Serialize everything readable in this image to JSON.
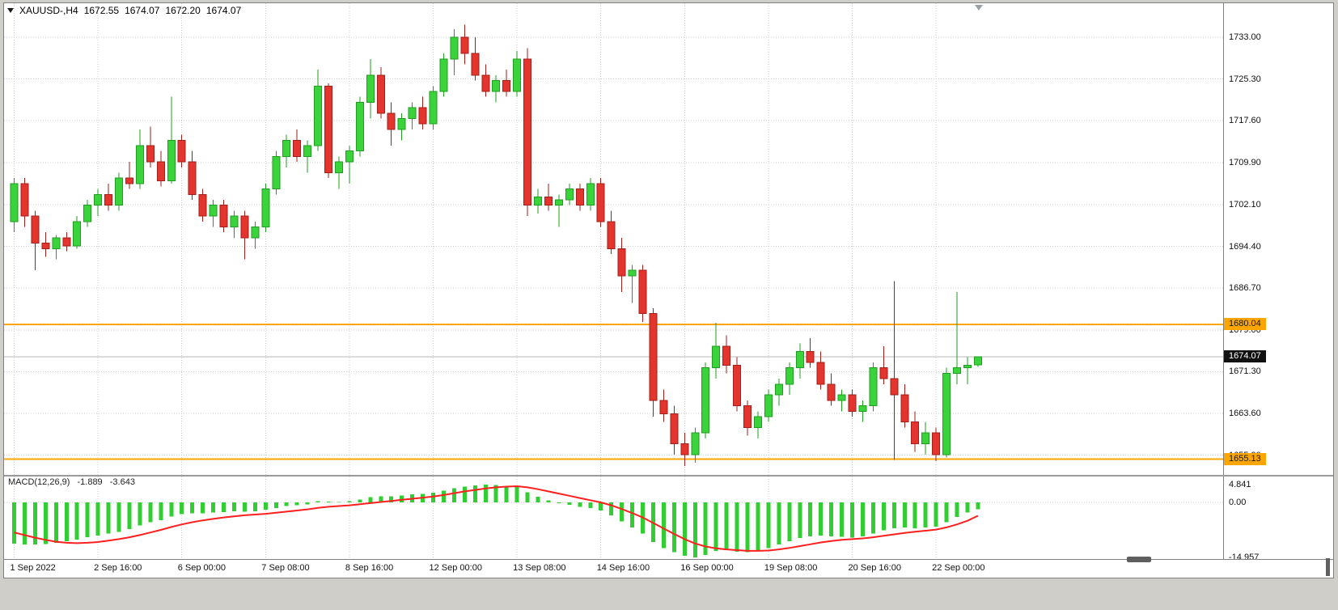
{
  "window": {
    "background": "#d0cec8"
  },
  "quote_bar": {
    "symbol": "XAUUSD-,H4",
    "open": "1672.55",
    "high": "1674.07",
    "low": "1672.20",
    "close": "1674.07"
  },
  "levels": {
    "resistance": {
      "price": 1680.04,
      "label": "1680.04",
      "color": "#ffa500"
    },
    "support": {
      "price": 1655.13,
      "label": "1655.13",
      "color": "#ffa500"
    },
    "current": {
      "price": 1674.07,
      "label": "1674.07",
      "bg": "#111111",
      "fg": "#ffffff"
    }
  },
  "macd_panel": {
    "title": "MACD(12,26,9)",
    "value_main": "-1.889",
    "value_signal": "-3.643",
    "axis_labels": [
      {
        "text": "4.841",
        "value": 4.841
      },
      {
        "text": "0.00",
        "value": 0
      },
      {
        "text": "-14.957",
        "value": -14.957
      }
    ]
  },
  "chart_data": {
    "type": "candlestick",
    "symbol": "XAUUSD-",
    "timeframe": "H4",
    "title": "XAUUSD- H4 with MACD(12,26,9)",
    "ylim": [
      1650,
      1737
    ],
    "grid": true,
    "price_ticks": [
      1733.0,
      1725.3,
      1717.6,
      1709.9,
      1702.1,
      1694.4,
      1686.7,
      1679.0,
      1671.3,
      1663.6,
      1655.9
    ],
    "x_labels": [
      {
        "index": 0,
        "text": "1 Sep 2022"
      },
      {
        "index": 8,
        "text": "2 Sep 16:00"
      },
      {
        "index": 16,
        "text": "6 Sep 00:00"
      },
      {
        "index": 24,
        "text": "7 Sep 08:00"
      },
      {
        "index": 32,
        "text": "8 Sep 16:00"
      },
      {
        "index": 40,
        "text": "12 Sep 00:00"
      },
      {
        "index": 48,
        "text": "13 Sep 08:00"
      },
      {
        "index": 56,
        "text": "14 Sep 16:00"
      },
      {
        "index": 64,
        "text": "16 Sep 00:00"
      },
      {
        "index": 72,
        "text": "19 Sep 08:00"
      },
      {
        "index": 80,
        "text": "20 Sep 16:00"
      },
      {
        "index": 88,
        "text": "22 Sep 00:00"
      }
    ],
    "candles": [
      [
        1699,
        1707,
        1697,
        1706
      ],
      [
        1706,
        1707,
        1698,
        1700
      ],
      [
        1700,
        1701,
        1690,
        1695
      ],
      [
        1695,
        1697,
        1692.5,
        1694
      ],
      [
        1694,
        1696.5,
        1692,
        1696
      ],
      [
        1696,
        1697,
        1693.5,
        1694.5
      ],
      [
        1694.5,
        1700,
        1694,
        1699
      ],
      [
        1699,
        1703,
        1698,
        1702
      ],
      [
        1702,
        1705,
        1700,
        1704
      ],
      [
        1704,
        1706,
        1701,
        1702
      ],
      [
        1702,
        1708,
        1701,
        1707
      ],
      [
        1707,
        1710,
        1705,
        1706
      ],
      [
        1706,
        1716,
        1705,
        1713
      ],
      [
        1713,
        1716.5,
        1709,
        1710
      ],
      [
        1710,
        1712,
        1705.5,
        1706.5
      ],
      [
        1706.5,
        1722,
        1706,
        1714
      ],
      [
        1714,
        1715,
        1709,
        1710
      ],
      [
        1710,
        1712,
        1703,
        1704
      ],
      [
        1704,
        1705,
        1699,
        1700
      ],
      [
        1700,
        1703,
        1698,
        1702
      ],
      [
        1702,
        1703,
        1697,
        1698
      ],
      [
        1698,
        1701,
        1696,
        1700
      ],
      [
        1700,
        1701,
        1692,
        1696
      ],
      [
        1696,
        1699,
        1694,
        1698
      ],
      [
        1698,
        1706,
        1697,
        1705
      ],
      [
        1705,
        1712,
        1704,
        1711
      ],
      [
        1711,
        1715,
        1709,
        1714
      ],
      [
        1714,
        1716,
        1710,
        1711
      ],
      [
        1711,
        1714,
        1708,
        1713
      ],
      [
        1713,
        1727,
        1712,
        1724
      ],
      [
        1724,
        1724.5,
        1707,
        1708
      ],
      [
        1708,
        1711,
        1705,
        1710
      ],
      [
        1710,
        1713,
        1706,
        1712
      ],
      [
        1712,
        1722,
        1711,
        1721
      ],
      [
        1721,
        1729,
        1718,
        1726
      ],
      [
        1726,
        1727.5,
        1718,
        1719
      ],
      [
        1719,
        1721,
        1713,
        1716
      ],
      [
        1716,
        1719,
        1714,
        1718
      ],
      [
        1718,
        1721,
        1716,
        1720
      ],
      [
        1720,
        1722,
        1716,
        1717
      ],
      [
        1717,
        1724,
        1716,
        1723
      ],
      [
        1723,
        1730,
        1722,
        1729
      ],
      [
        1729,
        1734.5,
        1726,
        1733
      ],
      [
        1733,
        1735.3,
        1728,
        1730
      ],
      [
        1730,
        1733,
        1725,
        1726
      ],
      [
        1726,
        1728,
        1722,
        1723
      ],
      [
        1723,
        1726,
        1721,
        1725
      ],
      [
        1725,
        1727,
        1722,
        1723
      ],
      [
        1723,
        1730.5,
        1722,
        1729
      ],
      [
        1729,
        1731,
        1700,
        1702
      ],
      [
        1702,
        1705,
        1700.5,
        1703.5
      ],
      [
        1703.5,
        1706,
        1701,
        1702
      ],
      [
        1702,
        1704,
        1698,
        1703
      ],
      [
        1703,
        1706,
        1702,
        1705
      ],
      [
        1705,
        1706,
        1701,
        1702
      ],
      [
        1702,
        1707,
        1701,
        1706
      ],
      [
        1706,
        1707,
        1698,
        1699
      ],
      [
        1699,
        1701,
        1693,
        1694
      ],
      [
        1694,
        1696,
        1686,
        1689
      ],
      [
        1689,
        1691,
        1684,
        1690
      ],
      [
        1690,
        1691,
        1680.5,
        1682
      ],
      [
        1682,
        1683,
        1663,
        1666
      ],
      [
        1666,
        1668,
        1662,
        1663.5
      ],
      [
        1663.5,
        1665,
        1656,
        1658
      ],
      [
        1658,
        1660,
        1653.9,
        1656
      ],
      [
        1656,
        1661,
        1654.5,
        1660
      ],
      [
        1660,
        1673,
        1659,
        1672
      ],
      [
        1672,
        1680.3,
        1670,
        1676
      ],
      [
        1676,
        1678,
        1671,
        1672.5
      ],
      [
        1672.5,
        1674,
        1664,
        1665
      ],
      [
        1665,
        1666,
        1659.5,
        1661
      ],
      [
        1661,
        1664,
        1659,
        1663
      ],
      [
        1663,
        1668,
        1662,
        1667
      ],
      [
        1667,
        1670,
        1665,
        1669
      ],
      [
        1669,
        1673,
        1667,
        1672
      ],
      [
        1672,
        1676.5,
        1670,
        1675
      ],
      [
        1675,
        1677.5,
        1672,
        1673
      ],
      [
        1673,
        1675,
        1668,
        1669
      ],
      [
        1669,
        1671,
        1665,
        1666
      ],
      [
        1666,
        1668,
        1664,
        1667
      ],
      [
        1667,
        1668,
        1663,
        1664
      ],
      [
        1664,
        1666,
        1662,
        1665
      ],
      [
        1665,
        1673,
        1664,
        1672
      ],
      [
        1672,
        1676,
        1669,
        1670
      ],
      [
        1670,
        1688,
        1655,
        1667
      ],
      [
        1667,
        1669,
        1661,
        1662
      ],
      [
        1662,
        1664,
        1656.5,
        1658
      ],
      [
        1658,
        1662,
        1656,
        1660
      ],
      [
        1660,
        1661,
        1654.8,
        1656
      ],
      [
        1656,
        1672,
        1655.5,
        1671
      ],
      [
        1671,
        1686,
        1669,
        1672
      ],
      [
        1672,
        1674,
        1669,
        1672.5
      ],
      [
        1672.55,
        1674.07,
        1672.2,
        1674.07
      ]
    ],
    "indicator": {
      "type": "macd",
      "params": "12,26,9",
      "ylim": [
        -14.957,
        4.841
      ],
      "histogram": [
        -11.2,
        -11.4,
        -11.5,
        -11.3,
        -11.0,
        -10.6,
        -10.1,
        -9.5,
        -9.0,
        -8.5,
        -8.0,
        -7.3,
        -6.3,
        -5.4,
        -4.8,
        -3.8,
        -3.2,
        -3.0,
        -3.0,
        -2.8,
        -2.6,
        -2.4,
        -2.5,
        -2.4,
        -2.0,
        -1.5,
        -1.0,
        -0.8,
        -0.5,
        0.3,
        0.2,
        0.1,
        0.3,
        0.8,
        1.4,
        1.6,
        1.7,
        1.9,
        2.2,
        2.3,
        2.6,
        3.2,
        3.9,
        4.3,
        4.6,
        4.84,
        4.7,
        4.4,
        4.2,
        2.8,
        1.5,
        0.6,
        -0.2,
        -0.7,
        -1.2,
        -1.5,
        -2.2,
        -3.5,
        -5.2,
        -6.8,
        -8.5,
        -10.8,
        -12.4,
        -13.6,
        -14.5,
        -14.96,
        -14.3,
        -13.2,
        -13.0,
        -13.4,
        -13.6,
        -13.2,
        -12.4,
        -11.5,
        -10.6,
        -9.7,
        -9.2,
        -9.0,
        -9.2,
        -9.4,
        -9.6,
        -9.3,
        -8.5,
        -7.6,
        -7.0,
        -6.8,
        -7.0,
        -6.8,
        -6.6,
        -5.4,
        -4.0,
        -2.8,
        -1.889
      ],
      "signal": [
        -8.2,
        -8.9,
        -9.6,
        -10.2,
        -10.7,
        -11.0,
        -11.1,
        -11.0,
        -10.8,
        -10.4,
        -10.0,
        -9.5,
        -8.9,
        -8.2,
        -7.5,
        -6.7,
        -6.0,
        -5.4,
        -4.9,
        -4.5,
        -4.1,
        -3.8,
        -3.5,
        -3.3,
        -3.1,
        -2.8,
        -2.5,
        -2.2,
        -1.9,
        -1.5,
        -1.2,
        -1.0,
        -0.8,
        -0.5,
        -0.2,
        0.1,
        0.4,
        0.7,
        1.0,
        1.3,
        1.6,
        2.0,
        2.5,
        3.0,
        3.4,
        3.8,
        4.1,
        4.3,
        4.4,
        4.1,
        3.6,
        3.0,
        2.4,
        1.8,
        1.2,
        0.6,
        0.0,
        -0.8,
        -1.8,
        -2.9,
        -4.1,
        -5.6,
        -7.1,
        -8.6,
        -10.0,
        -11.2,
        -12.0,
        -12.5,
        -12.8,
        -13.0,
        -13.2,
        -13.2,
        -13.1,
        -12.8,
        -12.4,
        -11.9,
        -11.4,
        -10.9,
        -10.5,
        -10.2,
        -10.0,
        -9.8,
        -9.5,
        -9.1,
        -8.7,
        -8.3,
        -8.0,
        -7.7,
        -7.4,
        -6.8,
        -6.0,
        -5.0,
        -3.643
      ]
    },
    "colors": {
      "bull": "#3bd33b",
      "bull_edge": "#1f9e1f",
      "bear": "#e3352e",
      "bear_edge": "#a31f1a",
      "histogram": "#32cd32",
      "signal": "#ff1f1f",
      "grid": "#cdcdcd",
      "level": "#ffa500",
      "current_line": "#b8b8b8"
    }
  }
}
